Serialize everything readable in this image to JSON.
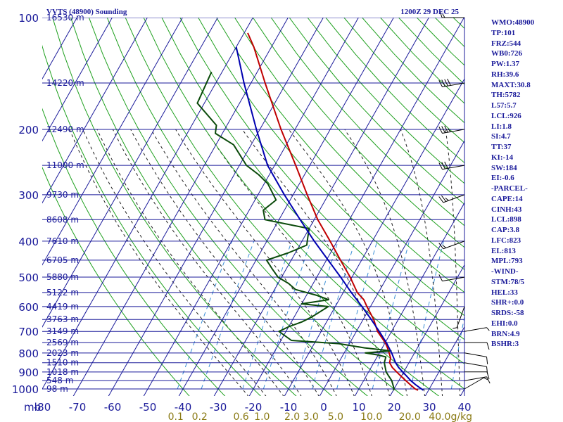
{
  "header": {
    "station": "VVTS (48900) Sounding",
    "time": "1200Z 29 DEC 25"
  },
  "colors": {
    "grid": "#1a1a9a",
    "dry_adiabat": "#1fa01f",
    "moist_adiabat": "#202020",
    "mixing_ratio": "#3a8fd6",
    "temperature": "#c00000",
    "dewpoint": "#0a4a0a",
    "parcel": "#0000b0",
    "wind": "#000000"
  },
  "indices": [
    "WMO:48900",
    "TP:101",
    "FRZ:544",
    "WB0:726",
    "PW:1.37",
    "RH:39.6",
    "MAXT:30.8",
    "TH:5782",
    "L57:5.7",
    "LCL:926",
    "LI:1.8",
    "SI:4.7",
    "TT:37",
    "KI:-14",
    "SW:184",
    "EI:-0.6",
    "-PARCEL-",
    "CAPE:14",
    "CINH:43",
    "LCL:898",
    "CAP:3.8",
    "LFC:823",
    "EL:813",
    "MPL:793",
    "-WIND-",
    "STM:78/5",
    "HEL:33",
    "SHR+:0.0",
    "SRDS:-58",
    "EHI:0.0",
    "BRN:4.9",
    "BSHR:3"
  ],
  "chart_data": {
    "type": "skew-t",
    "title": "VVTS (48900) Sounding",
    "valid_time": "1200Z 29 DEC 25",
    "y_axis": {
      "unit": "mb",
      "ticks": [
        100,
        200,
        300,
        400,
        500,
        600,
        700,
        800,
        900,
        1000
      ],
      "range": [
        100,
        1050
      ]
    },
    "x_axis": {
      "unit": "C",
      "ticks": [
        -80,
        -70,
        -60,
        -50,
        -40,
        -30,
        -20,
        -10,
        0,
        10,
        20,
        30,
        40
      ],
      "range": [
        -80,
        40
      ]
    },
    "axis_unit_label": "mb",
    "mixing_ratio_labels": [
      "0.1",
      "0.2",
      "0.6",
      "1.0",
      "2.0",
      "3.0",
      "5.0",
      "10.0",
      "20.0",
      "40.0"
    ],
    "mixing_ratio_unit": "g/kg",
    "height_labels": [
      {
        "p": 100,
        "label": "16530 m"
      },
      {
        "p": 150,
        "label": "14220 m"
      },
      {
        "p": 200,
        "label": "12490 m"
      },
      {
        "p": 250,
        "label": "11000 m"
      },
      {
        "p": 300,
        "label": "9730 m"
      },
      {
        "p": 350,
        "label": "8608 m"
      },
      {
        "p": 400,
        "label": "7610 m"
      },
      {
        "p": 450,
        "label": "6705 m"
      },
      {
        "p": 500,
        "label": "5880 m"
      },
      {
        "p": 550,
        "label": "5122 m"
      },
      {
        "p": 600,
        "label": "4419 m"
      },
      {
        "p": 650,
        "label": "3763 m"
      },
      {
        "p": 700,
        "label": "3149 m"
      },
      {
        "p": 750,
        "label": "2569 m"
      },
      {
        "p": 800,
        "label": "2023 m"
      },
      {
        "p": 850,
        "label": "1510 m"
      },
      {
        "p": 900,
        "label": "1018 m"
      },
      {
        "p": 950,
        "label": "548 m"
      },
      {
        "p": 1000,
        "label": "98 m"
      }
    ],
    "series": [
      {
        "name": "Temperature",
        "points": [
          [
            1008,
            27
          ],
          [
            1000,
            26
          ],
          [
            975,
            24
          ],
          [
            950,
            22
          ],
          [
            925,
            20
          ],
          [
            900,
            18
          ],
          [
            875,
            16
          ],
          [
            850,
            14.5
          ],
          [
            825,
            14
          ],
          [
            800,
            12.8
          ],
          [
            775,
            11.5
          ],
          [
            750,
            10
          ],
          [
            700,
            6
          ],
          [
            650,
            3
          ],
          [
            600,
            -1
          ],
          [
            575,
            -3
          ],
          [
            550,
            -6
          ],
          [
            500,
            -10.5
          ],
          [
            450,
            -16
          ],
          [
            400,
            -22
          ],
          [
            350,
            -29
          ],
          [
            300,
            -36
          ],
          [
            250,
            -44
          ],
          [
            200,
            -54
          ],
          [
            150,
            -66
          ],
          [
            120,
            -75
          ],
          [
            110,
            -79
          ]
        ]
      },
      {
        "name": "Dewpoint",
        "points": [
          [
            1008,
            20
          ],
          [
            1000,
            20
          ],
          [
            950,
            18
          ],
          [
            925,
            16.5
          ],
          [
            900,
            15
          ],
          [
            875,
            14
          ],
          [
            850,
            13
          ],
          [
            820,
            12.5
          ],
          [
            810,
            10
          ],
          [
            800,
            6
          ],
          [
            790,
            13
          ],
          [
            775,
            5
          ],
          [
            755,
            -3
          ],
          [
            740,
            -17
          ],
          [
            700,
            -22
          ],
          [
            680,
            -20
          ],
          [
            660,
            -17
          ],
          [
            640,
            -15
          ],
          [
            600,
            -12
          ],
          [
            590,
            -20
          ],
          [
            575,
            -13
          ],
          [
            560,
            -17
          ],
          [
            540,
            -24
          ],
          [
            520,
            -27
          ],
          [
            500,
            -31
          ],
          [
            475,
            -34
          ],
          [
            450,
            -37
          ],
          [
            430,
            -32
          ],
          [
            410,
            -28
          ],
          [
            390,
            -29
          ],
          [
            370,
            -30
          ],
          [
            350,
            -44
          ],
          [
            330,
            -46
          ],
          [
            310,
            -44
          ],
          [
            280,
            -49
          ],
          [
            265,
            -53
          ],
          [
            250,
            -58
          ],
          [
            220,
            -65
          ],
          [
            205,
            -72
          ],
          [
            195,
            -73
          ],
          [
            170,
            -82
          ],
          [
            140,
            -83
          ]
        ]
      },
      {
        "name": "Parcel",
        "points": [
          [
            1008,
            28.5
          ],
          [
            975,
            25.5
          ],
          [
            950,
            23.4
          ],
          [
            925,
            21.6
          ],
          [
            900,
            19.7
          ],
          [
            875,
            17.8
          ],
          [
            850,
            16.2
          ],
          [
            800,
            13.5
          ],
          [
            750,
            10.3
          ],
          [
            700,
            6.5
          ],
          [
            650,
            2.3
          ],
          [
            600,
            -2.4
          ],
          [
            550,
            -7.7
          ],
          [
            500,
            -13.2
          ],
          [
            450,
            -19.5
          ],
          [
            400,
            -26.5
          ],
          [
            350,
            -34
          ],
          [
            300,
            -42.5
          ],
          [
            250,
            -52
          ],
          [
            200,
            -61
          ],
          [
            150,
            -72
          ],
          [
            120,
            -80
          ]
        ]
      }
    ],
    "wind_barbs": [
      {
        "p": 1000,
        "dir": 60,
        "spd": 5
      },
      {
        "p": 950,
        "dir": 80,
        "spd": 10
      },
      {
        "p": 900,
        "dir": 90,
        "spd": 10
      },
      {
        "p": 850,
        "dir": 100,
        "spd": 10
      },
      {
        "p": 800,
        "dir": 100,
        "spd": 10
      },
      {
        "p": 750,
        "dir": 90,
        "spd": 10
      },
      {
        "p": 700,
        "dir": 80,
        "spd": 5
      },
      {
        "p": 600,
        "dir": 200,
        "spd": 5
      },
      {
        "p": 500,
        "dir": 260,
        "spd": 10
      },
      {
        "p": 400,
        "dir": 250,
        "spd": 15
      },
      {
        "p": 300,
        "dir": 250,
        "spd": 25
      },
      {
        "p": 250,
        "dir": 260,
        "spd": 30
      },
      {
        "p": 200,
        "dir": 260,
        "spd": 35
      },
      {
        "p": 150,
        "dir": 260,
        "spd": 40
      },
      {
        "p": 100,
        "dir": 270,
        "spd": 15
      }
    ]
  }
}
